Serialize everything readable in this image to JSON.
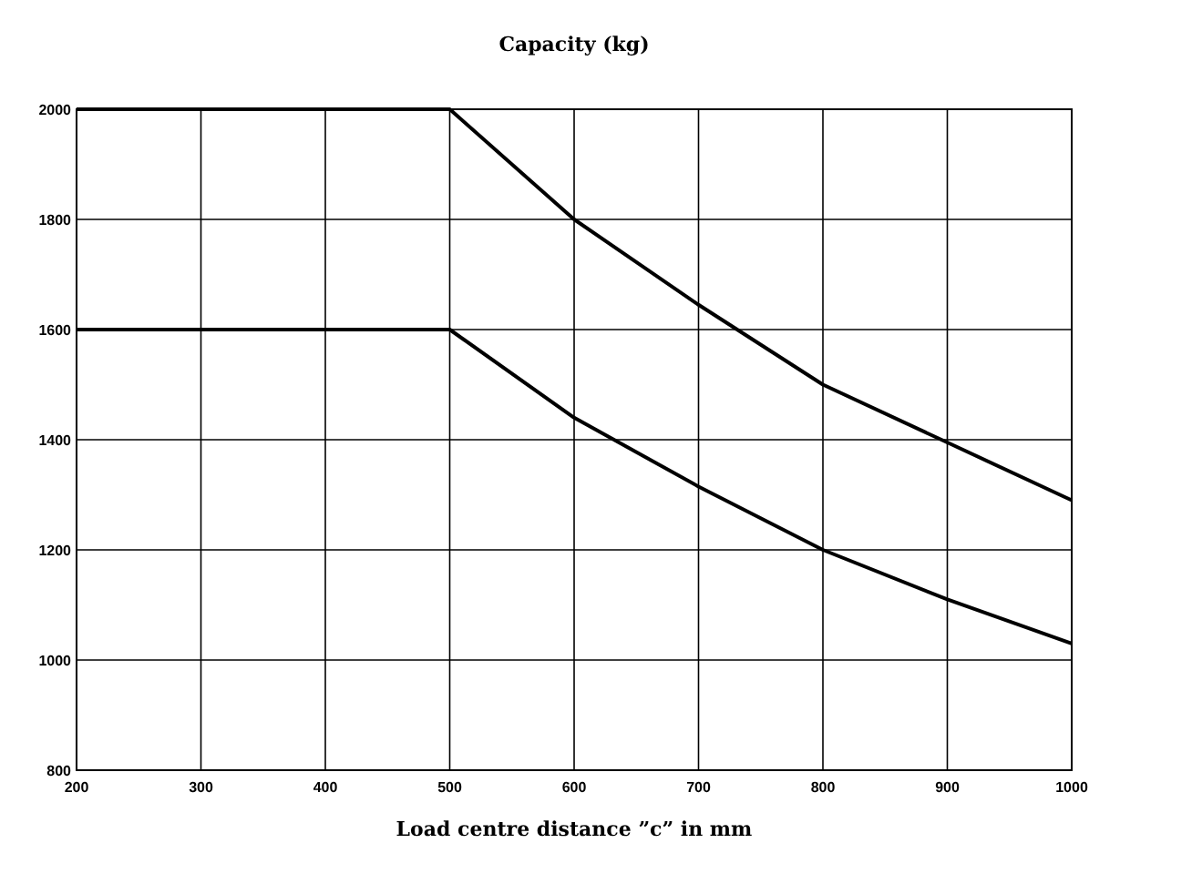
{
  "chart_data": {
    "type": "line",
    "title": "Capacity (kg)",
    "xlabel": "Load centre distance ”c” in mm",
    "x": [
      200,
      300,
      400,
      500,
      600,
      700,
      800,
      900,
      1000
    ],
    "series": [
      {
        "color": "#000000",
        "values": [
          2000,
          2000,
          2000,
          2000,
          1800,
          1645,
          1500,
          1395,
          1290
        ]
      },
      {
        "color": "#000000",
        "values": [
          1600,
          1600,
          1600,
          1600,
          1440,
          1315,
          1200,
          1110,
          1030
        ]
      }
    ],
    "xlim": [
      200,
      1000
    ],
    "ylim": [
      800,
      2000
    ],
    "xticks": [
      200,
      300,
      400,
      500,
      600,
      700,
      800,
      900,
      1000
    ],
    "yticks": [
      800,
      1000,
      1200,
      1400,
      1600,
      1800,
      2000
    ],
    "grid": true,
    "marker": "none",
    "line_style": "solid"
  }
}
